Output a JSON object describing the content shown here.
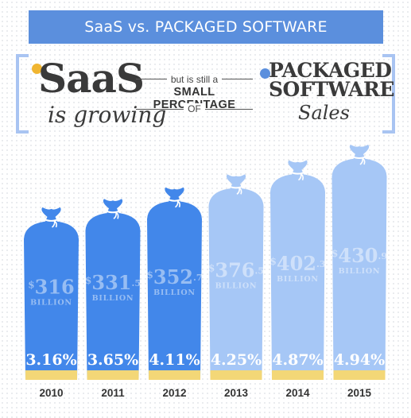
{
  "banner": {
    "title": "SaaS vs. PACKAGED SOFTWARE"
  },
  "headline": {
    "saas_word": "SaaS",
    "saas_sub": "is growing",
    "mid_line1": "but is still a",
    "mid_line2": "SMALL PERCENTAGE",
    "mid_line3": "OF",
    "packaged_line1": "PACKAGED",
    "packaged_line2": "SOFTWARE",
    "packaged_sub": "Sales"
  },
  "colors": {
    "banner": "#5b8fdd",
    "bag_dark": "#4287ea",
    "bag_light": "#a6c7f6",
    "base_yellow": "#f3d777",
    "text_dark": "#3a3a3a"
  },
  "chart_data": {
    "type": "bar",
    "title": "",
    "xlabel": "",
    "ylabel": "",
    "categories": [
      "2010",
      "2011",
      "2012",
      "2013",
      "2014",
      "2015"
    ],
    "series": [
      {
        "values": [
          316,
          331.5,
          352.7,
          376.5,
          402.3,
          430.9
        ]
      },
      {
        "values": [
          3.16,
          3.65,
          4.11,
          4.25,
          4.87,
          4.94
        ]
      }
    ],
    "value_labels": [
      {
        "dollar": "$",
        "whole": "316",
        "decimal": "",
        "unit": "BILLION"
      },
      {
        "dollar": "$",
        "whole": "331",
        "decimal": ".5",
        "unit": "BILLION"
      },
      {
        "dollar": "$",
        "whole": "352",
        "decimal": ".7",
        "unit": "BILLION"
      },
      {
        "dollar": "$",
        "whole": "376",
        "decimal": ".5",
        "unit": "BILLION"
      },
      {
        "dollar": "$",
        "whole": "402",
        "decimal": ".3",
        "unit": "BILLION"
      },
      {
        "dollar": "$",
        "whole": "430",
        "decimal": ".9",
        "unit": "BILLION"
      }
    ],
    "percent_labels": [
      "3.16%",
      "3.65%",
      "4.11%",
      "4.25%",
      "4.87%",
      "4.94%"
    ],
    "shade": [
      "dark",
      "dark",
      "dark",
      "light",
      "light",
      "light"
    ]
  }
}
